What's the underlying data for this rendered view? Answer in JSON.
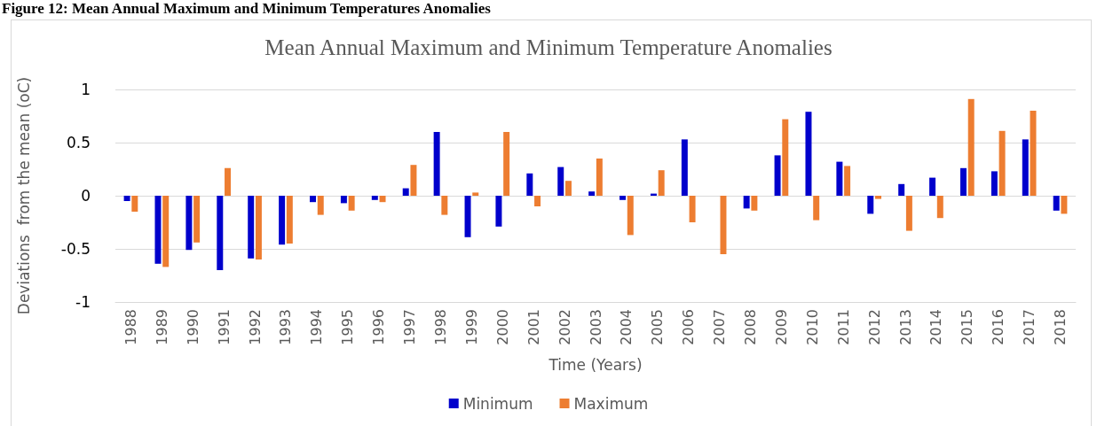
{
  "chart_data": {
    "type": "bar",
    "title": "Mean Annual Maximum and Minimum Temperature Anomalies",
    "xlabel": "Time (Years)",
    "ylabel": "Deviations  from the mean (oC)",
    "annotations": [
      "Figure 12: Mean Annual Maximum and Minimum Temperatures Anomalies"
    ],
    "categories": [
      "1988",
      "1989",
      "1990",
      "1991",
      "1992",
      "1993",
      "1994",
      "1995",
      "1996",
      "1997",
      "1998",
      "1999",
      "2000",
      "2001",
      "2002",
      "2003",
      "2004",
      "2005",
      "2006",
      "2007",
      "2008",
      "2009",
      "2010",
      "2011",
      "2012",
      "2013",
      "2014",
      "2015",
      "2016",
      "2017",
      "2018"
    ],
    "series": [
      {
        "name": "Minimum",
        "color": "#0000cc",
        "values": [
          -0.05,
          -0.64,
          -0.51,
          -0.7,
          -0.59,
          -0.46,
          -0.06,
          -0.07,
          -0.04,
          0.07,
          0.6,
          -0.39,
          -0.29,
          0.21,
          0.27,
          0.04,
          -0.04,
          0.02,
          0.53,
          0,
          -0.12,
          0.38,
          0.79,
          0.32,
          -0.17,
          0.11,
          0.17,
          0.26,
          0.23,
          0.53,
          -0.14
        ]
      },
      {
        "name": "Maximum",
        "color": "#ed7d31",
        "values": [
          -0.15,
          -0.67,
          -0.44,
          0.26,
          -0.6,
          -0.45,
          -0.18,
          -0.14,
          -0.06,
          0.29,
          -0.18,
          0.03,
          0.6,
          -0.1,
          0.14,
          0.35,
          -0.37,
          0.24,
          -0.25,
          -0.55,
          -0.14,
          0.72,
          -0.23,
          0.28,
          -0.03,
          -0.33,
          -0.21,
          0.91,
          0.61,
          0.8,
          -0.17
        ]
      }
    ],
    "ylim": [
      -1,
      1
    ],
    "yticks": [
      -1,
      -0.5,
      0,
      0.5,
      1
    ],
    "grid": "y",
    "legend": "bottom"
  }
}
